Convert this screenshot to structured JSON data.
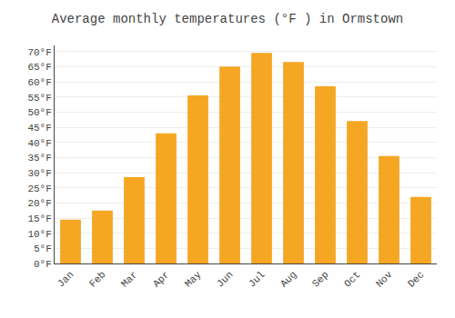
{
  "chart_data": {
    "type": "bar",
    "title": "Average monthly temperatures (°F ) in Ormstown",
    "categories": [
      "Jan",
      "Feb",
      "Mar",
      "Apr",
      "May",
      "Jun",
      "Jul",
      "Aug",
      "Sep",
      "Oct",
      "Nov",
      "Dec"
    ],
    "values": [
      14.5,
      17.5,
      28.5,
      43.0,
      55.5,
      65.0,
      69.5,
      66.5,
      58.5,
      47.0,
      35.5,
      22.0
    ],
    "color": "#F5A623",
    "ylim": [
      0,
      72
    ],
    "yticks": [
      {
        "value": 0,
        "label": "0°F"
      },
      {
        "value": 5,
        "label": "5°F"
      },
      {
        "value": 10,
        "label": "10°F"
      },
      {
        "value": 15,
        "label": "15°F"
      },
      {
        "value": 20,
        "label": "20°F"
      },
      {
        "value": 25,
        "label": "25°F"
      },
      {
        "value": 30,
        "label": "30°F"
      },
      {
        "value": 35,
        "label": "35°F"
      },
      {
        "value": 40,
        "label": "40°F"
      },
      {
        "value": 45,
        "label": "45°F"
      },
      {
        "value": 50,
        "label": "50°F"
      },
      {
        "value": 55,
        "label": "55°F"
      },
      {
        "value": 60,
        "label": "60°F"
      },
      {
        "value": 65,
        "label": "65°F"
      },
      {
        "value": 70,
        "label": "70°F"
      }
    ],
    "grid": true
  }
}
